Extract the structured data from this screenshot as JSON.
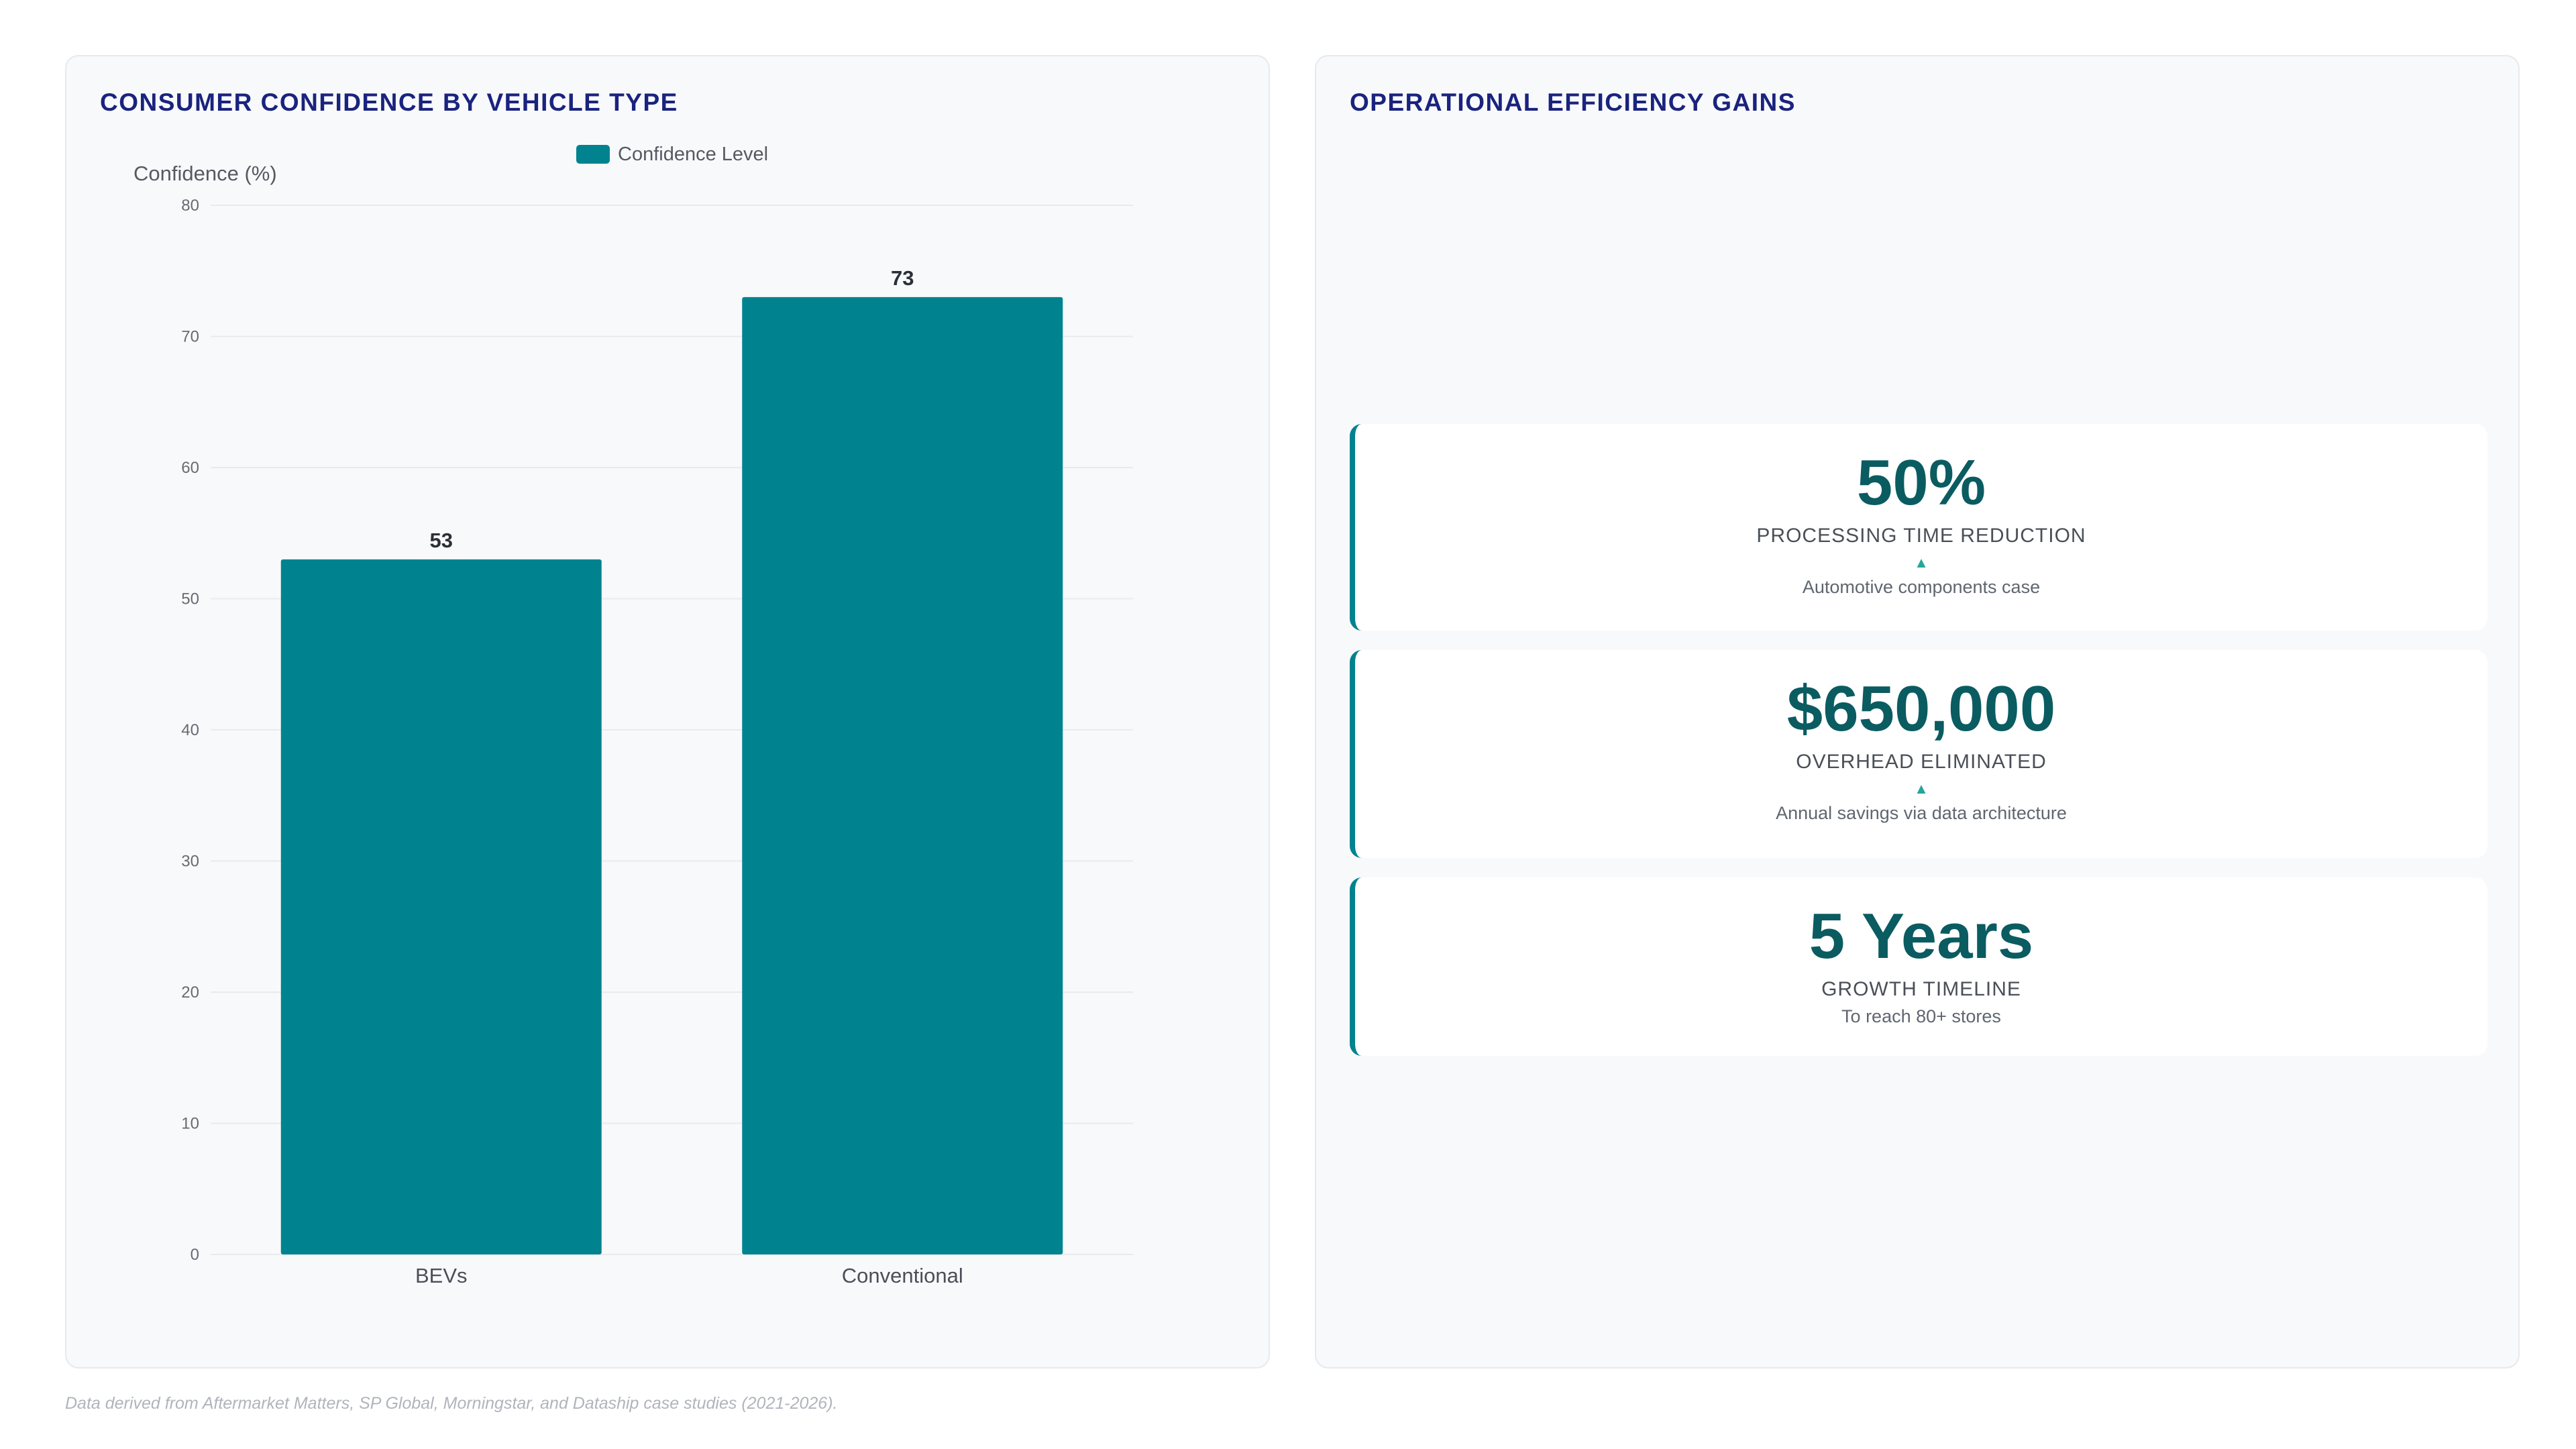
{
  "left_panel": {
    "title": "CONSUMER CONFIDENCE BY VEHICLE TYPE"
  },
  "chart_data": {
    "type": "bar",
    "categories": [
      "BEVs",
      "Conventional"
    ],
    "series": [
      {
        "name": "Confidence Level",
        "values": [
          53,
          73
        ],
        "color": "#00838f"
      }
    ],
    "title": "CONSUMER CONFIDENCE BY VEHICLE TYPE",
    "xlabel": "",
    "ylabel": "Confidence (%)",
    "ylim": [
      0,
      80
    ],
    "yticks": [
      0,
      10,
      20,
      30,
      40,
      50,
      60,
      70,
      80
    ],
    "grid": true,
    "legend": "top-center",
    "data_labels": true
  },
  "right_panel": {
    "title": "OPERATIONAL EFFICIENCY GAINS",
    "kpis": [
      {
        "value": "50%",
        "label": "PROCESSING TIME REDUCTION",
        "arrow": "▲",
        "note": "Automotive components case"
      },
      {
        "value": "$650,000",
        "label": "OVERHEAD ELIMINATED",
        "arrow": "▲",
        "note": "Annual savings via data architecture"
      },
      {
        "value": "5 Years",
        "label": "GROWTH TIMELINE",
        "note": "To reach 80+ stores"
      }
    ]
  },
  "footer": {
    "source": "Data derived from Aftermarket Matters, SP Global, Morningstar, and Dataship case studies (2021-2026)."
  },
  "colors": {
    "accent": "#00838f",
    "title": "#1a237e",
    "kpi_value": "#0a5c61",
    "arrow": "#26a69a"
  }
}
